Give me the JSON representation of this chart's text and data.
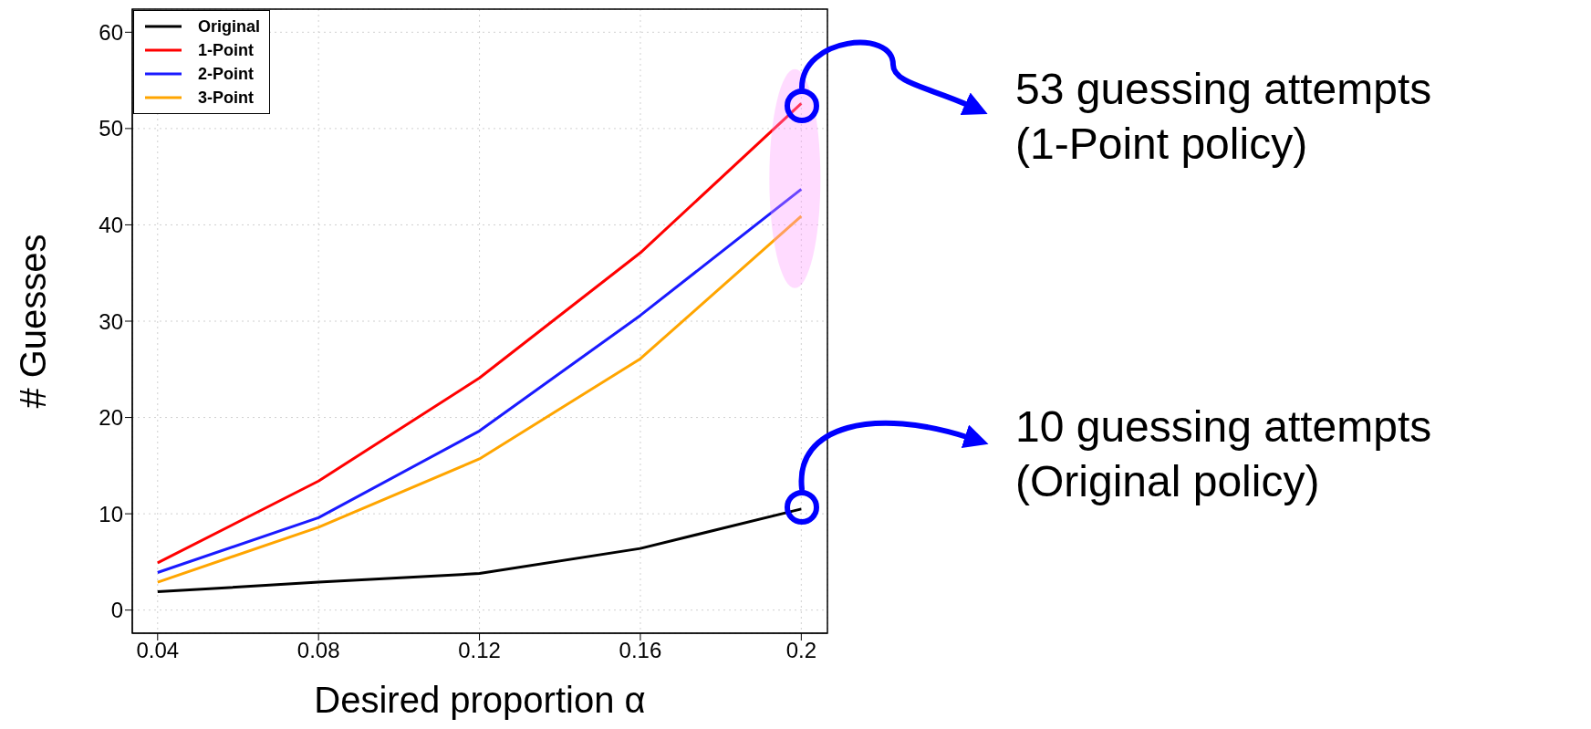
{
  "chart_data": {
    "type": "line",
    "xlabel": "Desired proportion α",
    "ylabel": "# Guesses",
    "x": [
      0.04,
      0.08,
      0.12,
      0.16,
      0.2
    ],
    "series": [
      {
        "name": "Original",
        "color": "#000000",
        "values": [
          1.9,
          2.9,
          3.8,
          6.4,
          10.5
        ]
      },
      {
        "name": "1-Point",
        "color": "#ff0000",
        "values": [
          4.9,
          13.4,
          24.1,
          37.1,
          52.6
        ]
      },
      {
        "name": "2-Point",
        "color": "#1a1aff",
        "values": [
          3.9,
          9.6,
          18.6,
          30.6,
          43.7
        ]
      },
      {
        "name": "3-Point",
        "color": "#ffa500",
        "values": [
          2.9,
          8.6,
          15.7,
          26.1,
          40.9
        ]
      }
    ],
    "xlim": [
      0.0337,
      0.2065
    ],
    "xticks": [
      0.04,
      0.08,
      0.12,
      0.16,
      {
        "value": 0.2,
        "label": "0.2"
      }
    ],
    "ylim": [
      -2.4,
      62.4
    ],
    "yticks": [
      0,
      10,
      20,
      30,
      40,
      50,
      60
    ],
    "grid": true,
    "legend": "top left",
    "marker": "none",
    "line_style": "solid",
    "annotations": [
      "53 guessing attempts\n(1-Point policy)",
      "10 guessing attempts\n(Original policy)"
    ]
  }
}
